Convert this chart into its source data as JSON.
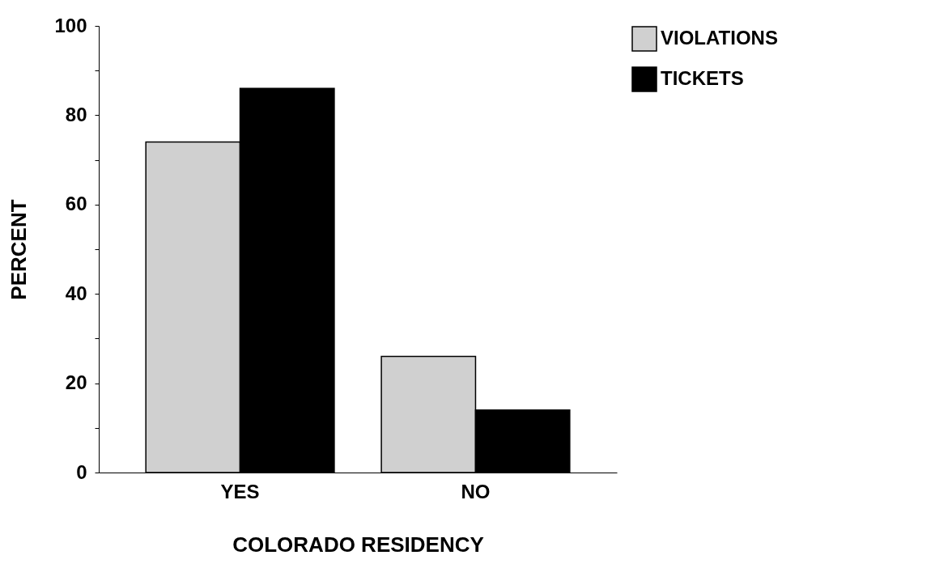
{
  "chart_data": {
    "type": "bar",
    "xlabel": "COLORADO RESIDENCY",
    "ylabel": "PERCENT",
    "categories": [
      "YES",
      "NO"
    ],
    "series": [
      {
        "name": "VIOLATIONS",
        "color": "#d0d0d0",
        "values": [
          74,
          26
        ]
      },
      {
        "name": "TICKETS",
        "color": "#000000",
        "values": [
          86,
          14
        ]
      }
    ],
    "ylim": [
      0,
      100
    ],
    "yticks": [
      0,
      {
        "value": 10,
        "label": null
      },
      20,
      {
        "value": 30,
        "label": null
      },
      40,
      {
        "value": 50,
        "label": null
      },
      60,
      {
        "value": 70,
        "label": null
      },
      80,
      {
        "value": 90,
        "label": null
      },
      100
    ],
    "grid": false,
    "legend": "top right"
  }
}
